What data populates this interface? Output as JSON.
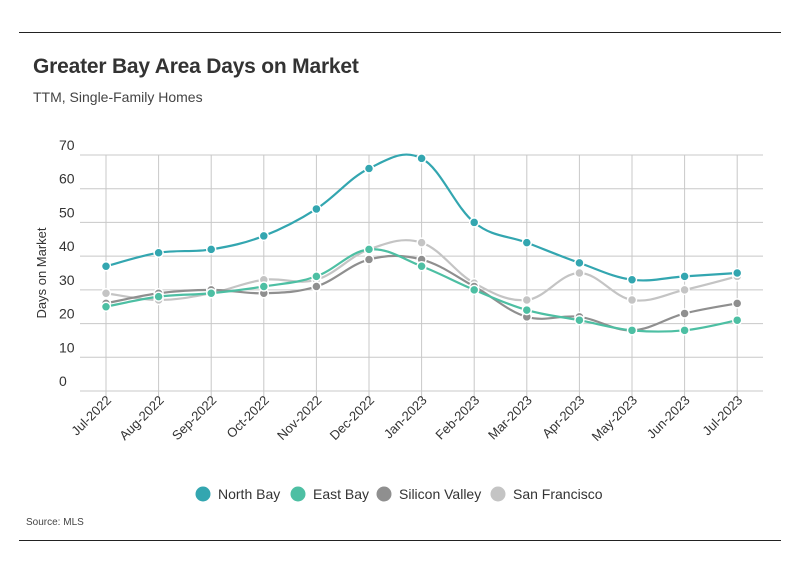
{
  "header": {
    "title": "Greater Bay Area Days on Market",
    "subtitle": "TTM, Single-Family Homes"
  },
  "footer": {
    "source": "Source:  MLS"
  },
  "chart_data": {
    "type": "line",
    "title": "Greater Bay Area Days on Market",
    "subtitle": "TTM, Single-Family Homes",
    "xlabel": "",
    "ylabel": "Days on Market",
    "ylim": [
      0,
      70
    ],
    "yticks": [
      0,
      10,
      20,
      30,
      40,
      50,
      60,
      70
    ],
    "grid": true,
    "legend_position": "bottom",
    "categories": [
      "Jul-2022",
      "Aug-2022",
      "Sep-2022",
      "Oct-2022",
      "Nov-2022",
      "Dec-2022",
      "Jan-2023",
      "Feb-2023",
      "Mar-2023",
      "Apr-2023",
      "May-2023",
      "Jun-2023",
      "Jul-2023"
    ],
    "series": [
      {
        "name": "San Francisco",
        "color": "#c4c4c4",
        "values": [
          29,
          27,
          29,
          33,
          33,
          42,
          44,
          32,
          27,
          35,
          27,
          30,
          34
        ]
      },
      {
        "name": "Silicon Valley",
        "color": "#8f8f8f",
        "values": [
          26,
          29,
          30,
          29,
          31,
          39,
          39,
          31,
          22,
          22,
          18,
          23,
          26
        ]
      },
      {
        "name": "East Bay",
        "color": "#4dbfa3",
        "values": [
          25,
          28,
          29,
          31,
          34,
          42,
          37,
          30,
          24,
          21,
          18,
          18,
          21
        ]
      },
      {
        "name": "North Bay",
        "color": "#33a6b0",
        "values": [
          37,
          41,
          42,
          46,
          54,
          66,
          69,
          50,
          44,
          38,
          33,
          34,
          35
        ]
      }
    ]
  }
}
